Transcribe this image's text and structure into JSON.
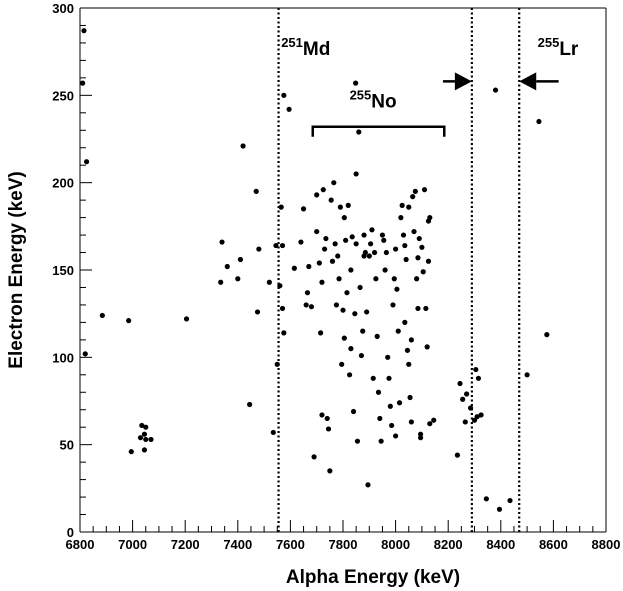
{
  "chart_data": {
    "type": "scatter",
    "title": "",
    "xlabel": "Alpha Energy (keV)",
    "ylabel": "Electron Energy (keV)",
    "xlim": [
      6800,
      8800
    ],
    "ylim": [
      0,
      300
    ],
    "x_ticks": [
      "6800",
      "7000",
      "7200",
      "7400",
      "7600",
      "7800",
      "8000",
      "8200",
      "8400",
      "8600",
      "8800"
    ],
    "y_ticks": [
      "0",
      "50",
      "100",
      "150",
      "200",
      "250",
      "300"
    ],
    "grid": false,
    "vlines": [
      7555,
      8290,
      8470
    ],
    "annotations": {
      "md": {
        "mass": "251",
        "symbol": "Md"
      },
      "no": {
        "mass": "255",
        "symbol": "No"
      },
      "lr": {
        "mass": "255",
        "symbol": "Lr"
      }
    },
    "bracket": {
      "x_start": 7685,
      "x_end": 8185,
      "y": 232
    },
    "arrows": [
      {
        "from_x": 8180,
        "to_x": 8290,
        "y": 258
      },
      {
        "from_x": 8620,
        "to_x": 8470,
        "y": 258
      }
    ],
    "points": [
      [
        6815,
        287
      ],
      [
        6810,
        257
      ],
      [
        6825,
        212
      ],
      [
        6820,
        102
      ],
      [
        6885,
        124
      ],
      [
        6985,
        121
      ],
      [
        6995,
        46
      ],
      [
        7035,
        61
      ],
      [
        7050,
        60
      ],
      [
        7045,
        56
      ],
      [
        7030,
        54
      ],
      [
        7050,
        53
      ],
      [
        7070,
        53
      ],
      [
        7045,
        47
      ],
      [
        7205,
        122
      ],
      [
        7335,
        143
      ],
      [
        7340,
        166
      ],
      [
        7360,
        152
      ],
      [
        7420,
        221
      ],
      [
        7410,
        156
      ],
      [
        7400,
        145
      ],
      [
        7445,
        73
      ],
      [
        7470,
        195
      ],
      [
        7480,
        162
      ],
      [
        7475,
        126
      ],
      [
        7520,
        143
      ],
      [
        7535,
        57
      ],
      [
        7545,
        164
      ],
      [
        7550,
        96
      ],
      [
        7565,
        186
      ],
      [
        7575,
        250
      ],
      [
        7595,
        242
      ],
      [
        7570,
        164
      ],
      [
        7560,
        141
      ],
      [
        7570,
        128
      ],
      [
        7575,
        114
      ],
      [
        7615,
        151
      ],
      [
        7640,
        166
      ],
      [
        7650,
        185
      ],
      [
        7665,
        137
      ],
      [
        7660,
        130
      ],
      [
        7670,
        152
      ],
      [
        7680,
        129
      ],
      [
        7690,
        43
      ],
      [
        7700,
        193
      ],
      [
        7700,
        172
      ],
      [
        7710,
        154
      ],
      [
        7715,
        114
      ],
      [
        7720,
        67
      ],
      [
        7720,
        143
      ],
      [
        7725,
        196
      ],
      [
        7730,
        162
      ],
      [
        7735,
        168
      ],
      [
        7740,
        65
      ],
      [
        7745,
        59
      ],
      [
        7750,
        35
      ],
      [
        7755,
        190
      ],
      [
        7760,
        155
      ],
      [
        7765,
        200
      ],
      [
        7770,
        165
      ],
      [
        7775,
        130
      ],
      [
        7780,
        158
      ],
      [
        7785,
        145
      ],
      [
        7790,
        186
      ],
      [
        7795,
        96
      ],
      [
        7800,
        127
      ],
      [
        7805,
        111
      ],
      [
        7810,
        167
      ],
      [
        7815,
        137
      ],
      [
        7820,
        187
      ],
      [
        7825,
        90
      ],
      [
        7830,
        150
      ],
      [
        7835,
        169
      ],
      [
        7840,
        69
      ],
      [
        7845,
        125
      ],
      [
        7848,
        257
      ],
      [
        7850,
        165
      ],
      [
        7855,
        52
      ],
      [
        7860,
        229
      ],
      [
        7865,
        140
      ],
      [
        7870,
        101
      ],
      [
        7875,
        115
      ],
      [
        7880,
        170
      ],
      [
        7885,
        160
      ],
      [
        7890,
        126
      ],
      [
        7895,
        27
      ],
      [
        7900,
        158
      ],
      [
        7905,
        165
      ],
      [
        7910,
        173
      ],
      [
        7915,
        88
      ],
      [
        7920,
        160
      ],
      [
        7925,
        145
      ],
      [
        7930,
        112
      ],
      [
        7935,
        80
      ],
      [
        7940,
        65
      ],
      [
        7945,
        52
      ],
      [
        7950,
        170
      ],
      [
        7955,
        167
      ],
      [
        7960,
        150
      ],
      [
        7965,
        160
      ],
      [
        7970,
        100
      ],
      [
        7975,
        88
      ],
      [
        7980,
        72
      ],
      [
        7985,
        61
      ],
      [
        7990,
        130
      ],
      [
        7995,
        145
      ],
      [
        8000,
        55
      ],
      [
        8005,
        139
      ],
      [
        8010,
        115
      ],
      [
        8015,
        74
      ],
      [
        8020,
        180
      ],
      [
        8025,
        187
      ],
      [
        8030,
        170
      ],
      [
        8035,
        164
      ],
      [
        8040,
        156
      ],
      [
        8045,
        104
      ],
      [
        8050,
        96
      ],
      [
        8055,
        77
      ],
      [
        8060,
        63
      ],
      [
        8065,
        192
      ],
      [
        8070,
        172
      ],
      [
        8075,
        195
      ],
      [
        8080,
        145
      ],
      [
        8085,
        157
      ],
      [
        8090,
        168
      ],
      [
        8095,
        56
      ],
      [
        8100,
        163
      ],
      [
        8105,
        149
      ],
      [
        8110,
        196
      ],
      [
        8115,
        128
      ],
      [
        8120,
        106
      ],
      [
        8125,
        178
      ],
      [
        8130,
        62
      ],
      [
        8145,
        64
      ],
      [
        8125,
        155
      ],
      [
        8130,
        180
      ],
      [
        8085,
        128
      ],
      [
        8095,
        54
      ],
      [
        7805,
        180
      ],
      [
        7850,
        205
      ],
      [
        7880,
        158
      ],
      [
        7830,
        105
      ],
      [
        8060,
        110
      ],
      [
        8035,
        120
      ],
      [
        8000,
        162
      ],
      [
        8050,
        186
      ],
      [
        8235,
        44
      ],
      [
        8245,
        85
      ],
      [
        8255,
        76
      ],
      [
        8265,
        63
      ],
      [
        8270,
        79
      ],
      [
        8285,
        71
      ],
      [
        8300,
        64
      ],
      [
        8305,
        93
      ],
      [
        8310,
        66
      ],
      [
        8315,
        88
      ],
      [
        8325,
        67
      ],
      [
        8345,
        19
      ],
      [
        8380,
        253
      ],
      [
        8395,
        13
      ],
      [
        8435,
        18
      ],
      [
        8500,
        90
      ],
      [
        8545,
        235
      ],
      [
        8575,
        113
      ]
    ]
  }
}
